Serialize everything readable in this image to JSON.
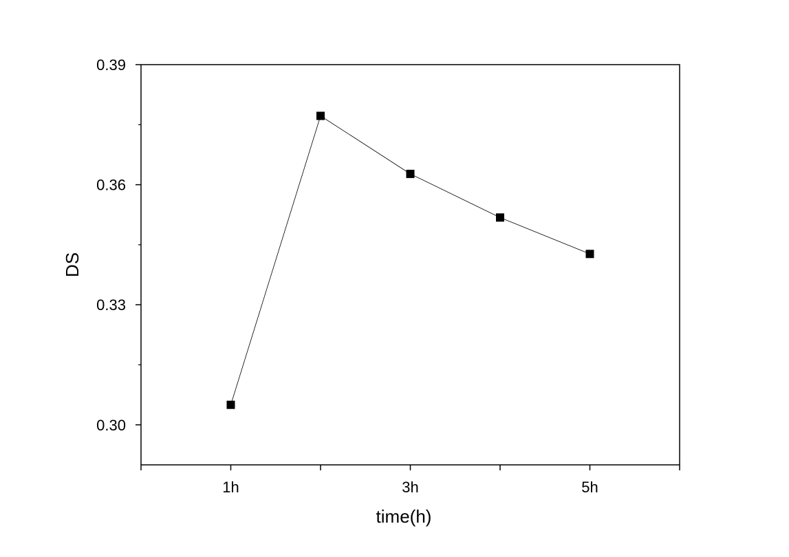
{
  "chart_data": {
    "type": "line",
    "title": "",
    "xlabel": "time(h)",
    "ylabel": "DS",
    "x": [
      1,
      2,
      3,
      4,
      5
    ],
    "x_tick_values": [
      1,
      3,
      5
    ],
    "x_tick_labels": [
      "1h",
      "3h",
      "5h"
    ],
    "xlim": [
      0,
      6
    ],
    "ylim": [
      0.29,
      0.39
    ],
    "y_tick_values": [
      0.3,
      0.33,
      0.36,
      0.39
    ],
    "y_tick_labels": [
      "0.30",
      "0.33",
      "0.36",
      "0.39"
    ],
    "series": [
      {
        "values": [
          0.305,
          0.3772,
          0.3627,
          0.3518,
          0.3427
        ],
        "marker": "square",
        "color": "#000000"
      }
    ],
    "grid": false,
    "legend": "none"
  }
}
